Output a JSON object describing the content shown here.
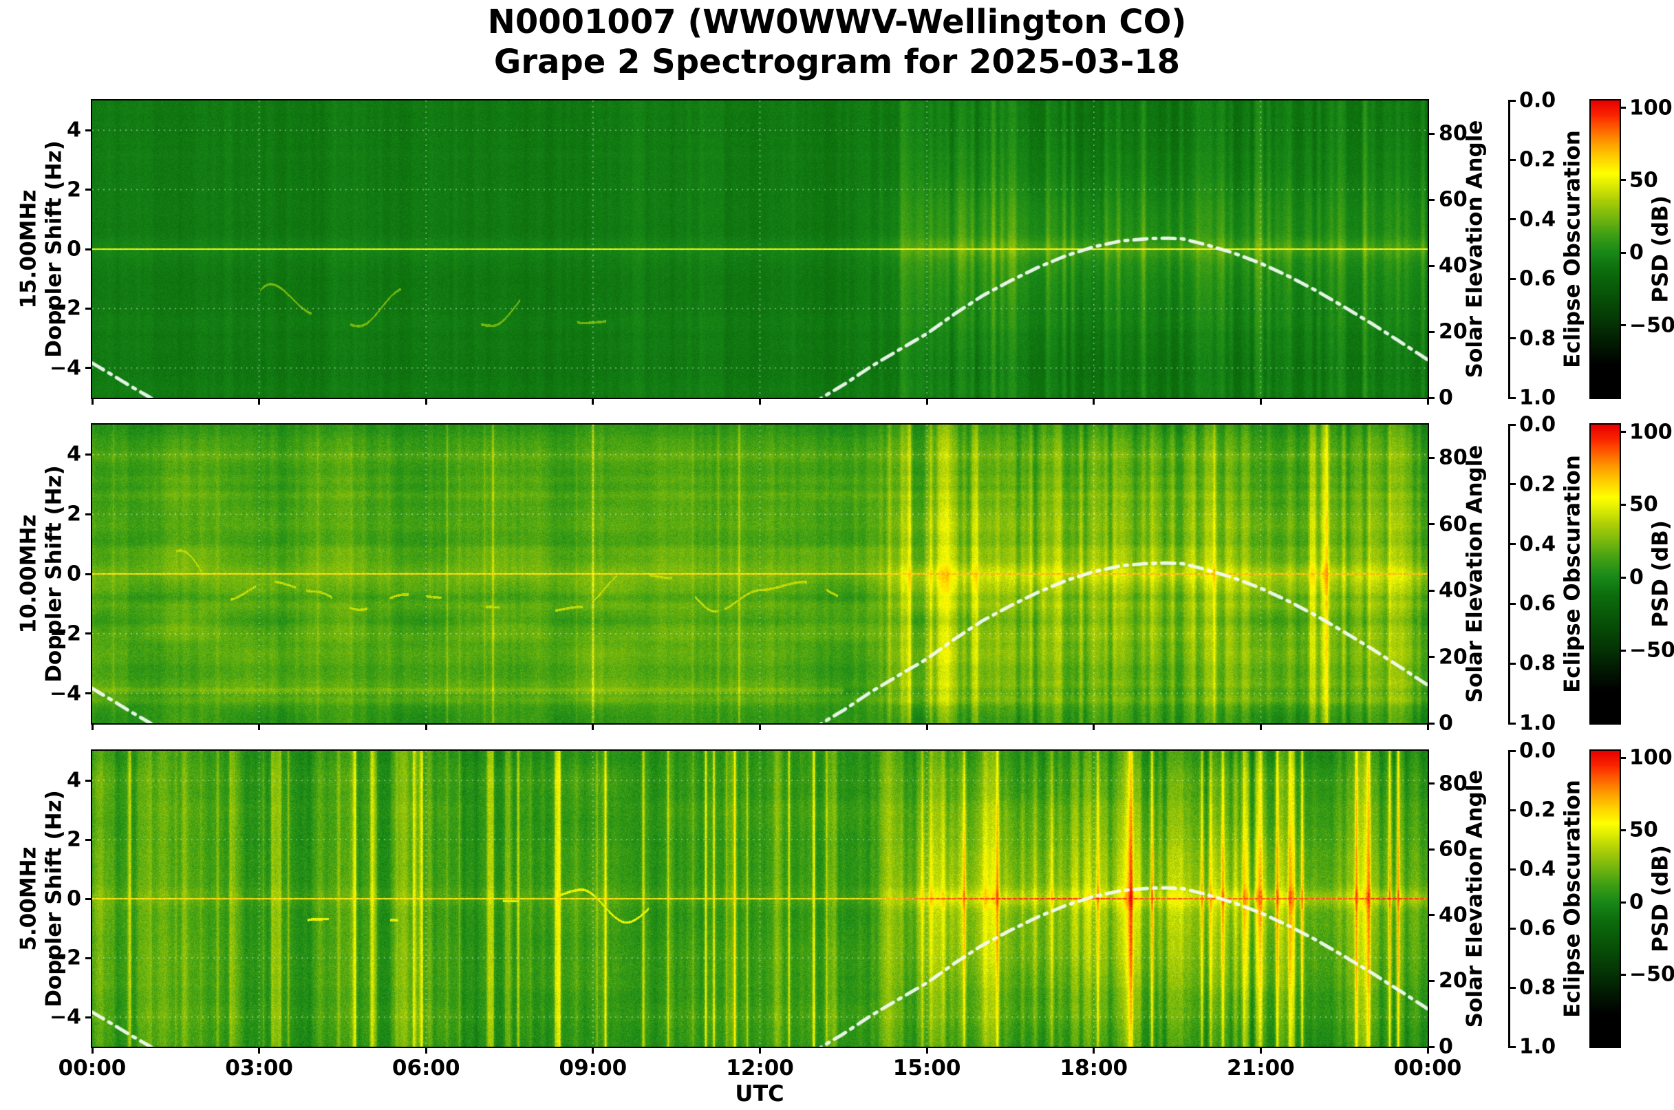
{
  "header": {
    "title_line1": "N0001007 (WW0WWV-Wellington CO)",
    "title_line2": "Grape 2 Spectrogram for 2025-03-18"
  },
  "x_axis": {
    "label": "UTC",
    "tick_hours": [
      0,
      3,
      6,
      9,
      12,
      15,
      18,
      21,
      24
    ],
    "tick_labels": [
      "00:00",
      "03:00",
      "06:00",
      "09:00",
      "12:00",
      "15:00",
      "18:00",
      "21:00",
      "00:00"
    ]
  },
  "psd_range": [
    -100,
    105
  ],
  "colormap_stops": [
    [
      -100,
      "#000000"
    ],
    [
      -78,
      "#000000"
    ],
    [
      -62,
      "#021c02"
    ],
    [
      -45,
      "#053a05"
    ],
    [
      -28,
      "#085508"
    ],
    [
      -12,
      "#0c6e0c"
    ],
    [
      0,
      "#188818"
    ],
    [
      12,
      "#3d9e14"
    ],
    [
      24,
      "#74b60e"
    ],
    [
      36,
      "#abcd07"
    ],
    [
      48,
      "#e2ef02"
    ],
    [
      55,
      "#ffff00"
    ],
    [
      66,
      "#ffcf00"
    ],
    [
      76,
      "#ff9b00"
    ],
    [
      86,
      "#ff5e00"
    ],
    [
      95,
      "#fb2500"
    ],
    [
      105,
      "#e80000"
    ]
  ],
  "solar_elevation_curve": {
    "hours": [
      0,
      0.35,
      0.7,
      1.05,
      1.3,
      12.85,
      13.15,
      13.5,
      14,
      14.5,
      15,
      15.5,
      16,
      16.5,
      17,
      17.5,
      18,
      18.5,
      19,
      19.3,
      19.6,
      20,
      20.5,
      21,
      21.5,
      22,
      22.5,
      23,
      23.5,
      24
    ],
    "elevation_deg": [
      10.5,
      7,
      3.4,
      0,
      -3,
      -3,
      0.4,
      3.9,
      9.5,
      14.5,
      19.4,
      25.4,
      30.9,
      35.4,
      39.5,
      43,
      45.7,
      47.5,
      48.2,
      48.3,
      48.1,
      46.4,
      43.9,
      40.7,
      36.8,
      32.4,
      27.5,
      22.4,
      17,
      11.5
    ]
  },
  "chart_data": [
    {
      "type": "heatmap",
      "band_label": "15.00MHz",
      "ylabel": "Doppler Shift (Hz)",
      "ylim": [
        -5,
        5
      ],
      "yticks": [
        -4,
        -2,
        0,
        2,
        4
      ],
      "carrier_freq_hz": 0,
      "right_axis": {
        "label": "Solar Elevation Angle",
        "lim": [
          0,
          90
        ],
        "ticks": [
          0,
          20,
          40,
          60,
          80
        ]
      },
      "eclipse_axis": {
        "label": "Eclipse Obscuration",
        "lim": [
          0,
          1
        ],
        "inverted": true,
        "tick_labels": [
          "0.0",
          "0.2",
          "0.4",
          "0.6",
          "0.8",
          "1.0"
        ]
      },
      "colorbar": {
        "label": "PSD (dB)",
        "ticks": [
          100,
          50,
          0,
          -50
        ]
      },
      "render": {
        "seed": 11,
        "background_db": -6,
        "pixel_noise_db": 4.5,
        "slow_streak_db": 2.5,
        "streak_db": 2.5,
        "streak_day_db": 5,
        "row_band_db": 1.2,
        "blob_db": 0,
        "day_start_utc": 13.6,
        "day_glow_db": 15,
        "glow_sigma_hz": 1.7,
        "evening_drop_db": 4,
        "carrier_db_night": 53,
        "carrier_db_day": 58,
        "carrier_glow_db": 9,
        "edge_dark_db": 0,
        "bright_columns": [
          [
            14.6,
            0.06,
            7
          ],
          [
            15.25,
            0.07,
            8
          ],
          [
            16.2,
            0.07,
            6
          ],
          [
            18.9,
            0.05,
            5
          ],
          [
            21.0,
            0.07,
            6
          ],
          [
            22.9,
            0.05,
            6
          ]
        ],
        "trace": {
          "t0": 2.0,
          "t1": 9.5,
          "center_hz": -1.7,
          "amp_hz": 1.3,
          "psd_db": 24,
          "gate": 0.2
        }
      }
    },
    {
      "type": "heatmap",
      "band_label": "10.00MHz",
      "ylabel": "Doppler Shift (Hz)",
      "ylim": [
        -5,
        5
      ],
      "yticks": [
        -4,
        -2,
        0,
        2,
        4
      ],
      "carrier_freq_hz": 0,
      "right_axis": {
        "label": "Solar Elevation Angle",
        "lim": [
          0,
          90
        ],
        "ticks": [
          0,
          20,
          40,
          60,
          80
        ]
      },
      "eclipse_axis": {
        "label": "Eclipse Obscuration",
        "lim": [
          0,
          1
        ],
        "inverted": true,
        "tick_labels": [
          "0.0",
          "0.2",
          "0.4",
          "0.6",
          "0.8",
          "1.0"
        ]
      },
      "colorbar": {
        "label": "PSD (dB)",
        "ticks": [
          100,
          50,
          0,
          -50
        ]
      },
      "render": {
        "seed": 22,
        "background_db": 16,
        "pixel_noise_db": 6.5,
        "slow_streak_db": 4,
        "streak_db": 4,
        "streak_day_db": 8,
        "row_band_db": 4,
        "blob_db": 6,
        "day_start_utc": 13.6,
        "day_glow_db": 13,
        "glow_sigma_hz": 2.6,
        "evening_drop_db": 3,
        "carrier_db_night": 63,
        "carrier_db_day": 71,
        "carrier_glow_db": 11,
        "edge_dark_db": 6,
        "spike_gain_db": 18,
        "spike_threshold": 0.72,
        "hline": {
          "freq_hz": -3.9,
          "t1": 13.5,
          "db": 13
        },
        "bright_columns": [
          [
            14.4,
            0.1,
            10
          ],
          [
            15.3,
            0.12,
            12
          ],
          [
            16.4,
            0.1,
            10
          ],
          [
            17.3,
            0.09,
            9
          ],
          [
            18.1,
            0.08,
            8
          ],
          [
            20.7,
            0.1,
            10
          ],
          [
            22.2,
            0.1,
            10
          ],
          [
            23.5,
            0.1,
            12
          ]
        ],
        "trace": {
          "t0": 1.5,
          "t1": 13.4,
          "center_hz": -0.2,
          "amp_hz": 1.2,
          "psd_db": 40,
          "gate": 0.15
        }
      }
    },
    {
      "type": "heatmap",
      "band_label": "5.00MHz",
      "ylabel": "Doppler Shift (Hz)",
      "ylim": [
        -5,
        5
      ],
      "yticks": [
        -4,
        -2,
        0,
        2,
        4
      ],
      "carrier_freq_hz": 0,
      "right_axis": {
        "label": "Solar Elevation Angle",
        "lim": [
          0,
          90
        ],
        "ticks": [
          0,
          20,
          40,
          60,
          80
        ]
      },
      "eclipse_axis": {
        "label": "Eclipse Obscuration",
        "lim": [
          0,
          1
        ],
        "inverted": true,
        "tick_labels": [
          "0.0",
          "0.2",
          "0.4",
          "0.6",
          "0.8",
          "1.0"
        ]
      },
      "colorbar": {
        "label": "PSD (dB)",
        "ticks": [
          100,
          50,
          0,
          -50
        ]
      },
      "render": {
        "seed": 33,
        "background_db": 10,
        "pixel_noise_db": 7.5,
        "slow_streak_db": 5,
        "streak_db": 7,
        "streak_day_db": 8,
        "row_band_db": 1.5,
        "blob_db": 4,
        "day_start_utc": 13.7,
        "day_glow_db": 26,
        "glow_sigma_hz": 2.5,
        "evening_drop_db": 8,
        "carrier_db_night": 62,
        "carrier_db_day": 87,
        "carrier_glow_db": 14,
        "edge_dark_db": 4,
        "spike_gain_db": 34,
        "spike_threshold": 0.6,
        "bright_columns": [
          [
            0.2,
            0.1,
            14
          ],
          [
            0.9,
            0.05,
            13
          ],
          [
            1.3,
            0.08,
            16
          ],
          [
            1.65,
            0.05,
            12
          ],
          [
            2.6,
            0.05,
            10
          ],
          [
            4.1,
            0.06,
            15
          ],
          [
            5.6,
            0.1,
            16
          ],
          [
            6.05,
            0.05,
            12
          ],
          [
            7.5,
            0.05,
            10
          ],
          [
            9.2,
            0.06,
            12
          ],
          [
            10.4,
            0.05,
            10
          ],
          [
            11.5,
            0.06,
            13
          ],
          [
            12.3,
            0.05,
            14
          ],
          [
            13.3,
            0.08,
            15
          ],
          [
            14.3,
            0.12,
            14
          ],
          [
            15.2,
            0.12,
            13
          ],
          [
            16.1,
            0.1,
            12
          ],
          [
            18.6,
            0.08,
            10
          ],
          [
            20.6,
            0.1,
            13
          ],
          [
            21.4,
            0.08,
            12
          ],
          [
            22.8,
            0.07,
            13
          ],
          [
            23.8,
            0.06,
            12
          ]
        ],
        "carrier_spikes": [
          [
            2.5,
            0.4,
            4
          ],
          [
            16.9,
            0.9,
            5
          ],
          [
            17.8,
            0.6,
            4
          ],
          [
            23.35,
            0.3,
            8
          ]
        ],
        "trace": {
          "t0": 3.0,
          "t1": 10.0,
          "center_hz": -0.3,
          "amp_hz": 0.9,
          "psd_db": 50,
          "gate": 0.3
        }
      }
    }
  ]
}
